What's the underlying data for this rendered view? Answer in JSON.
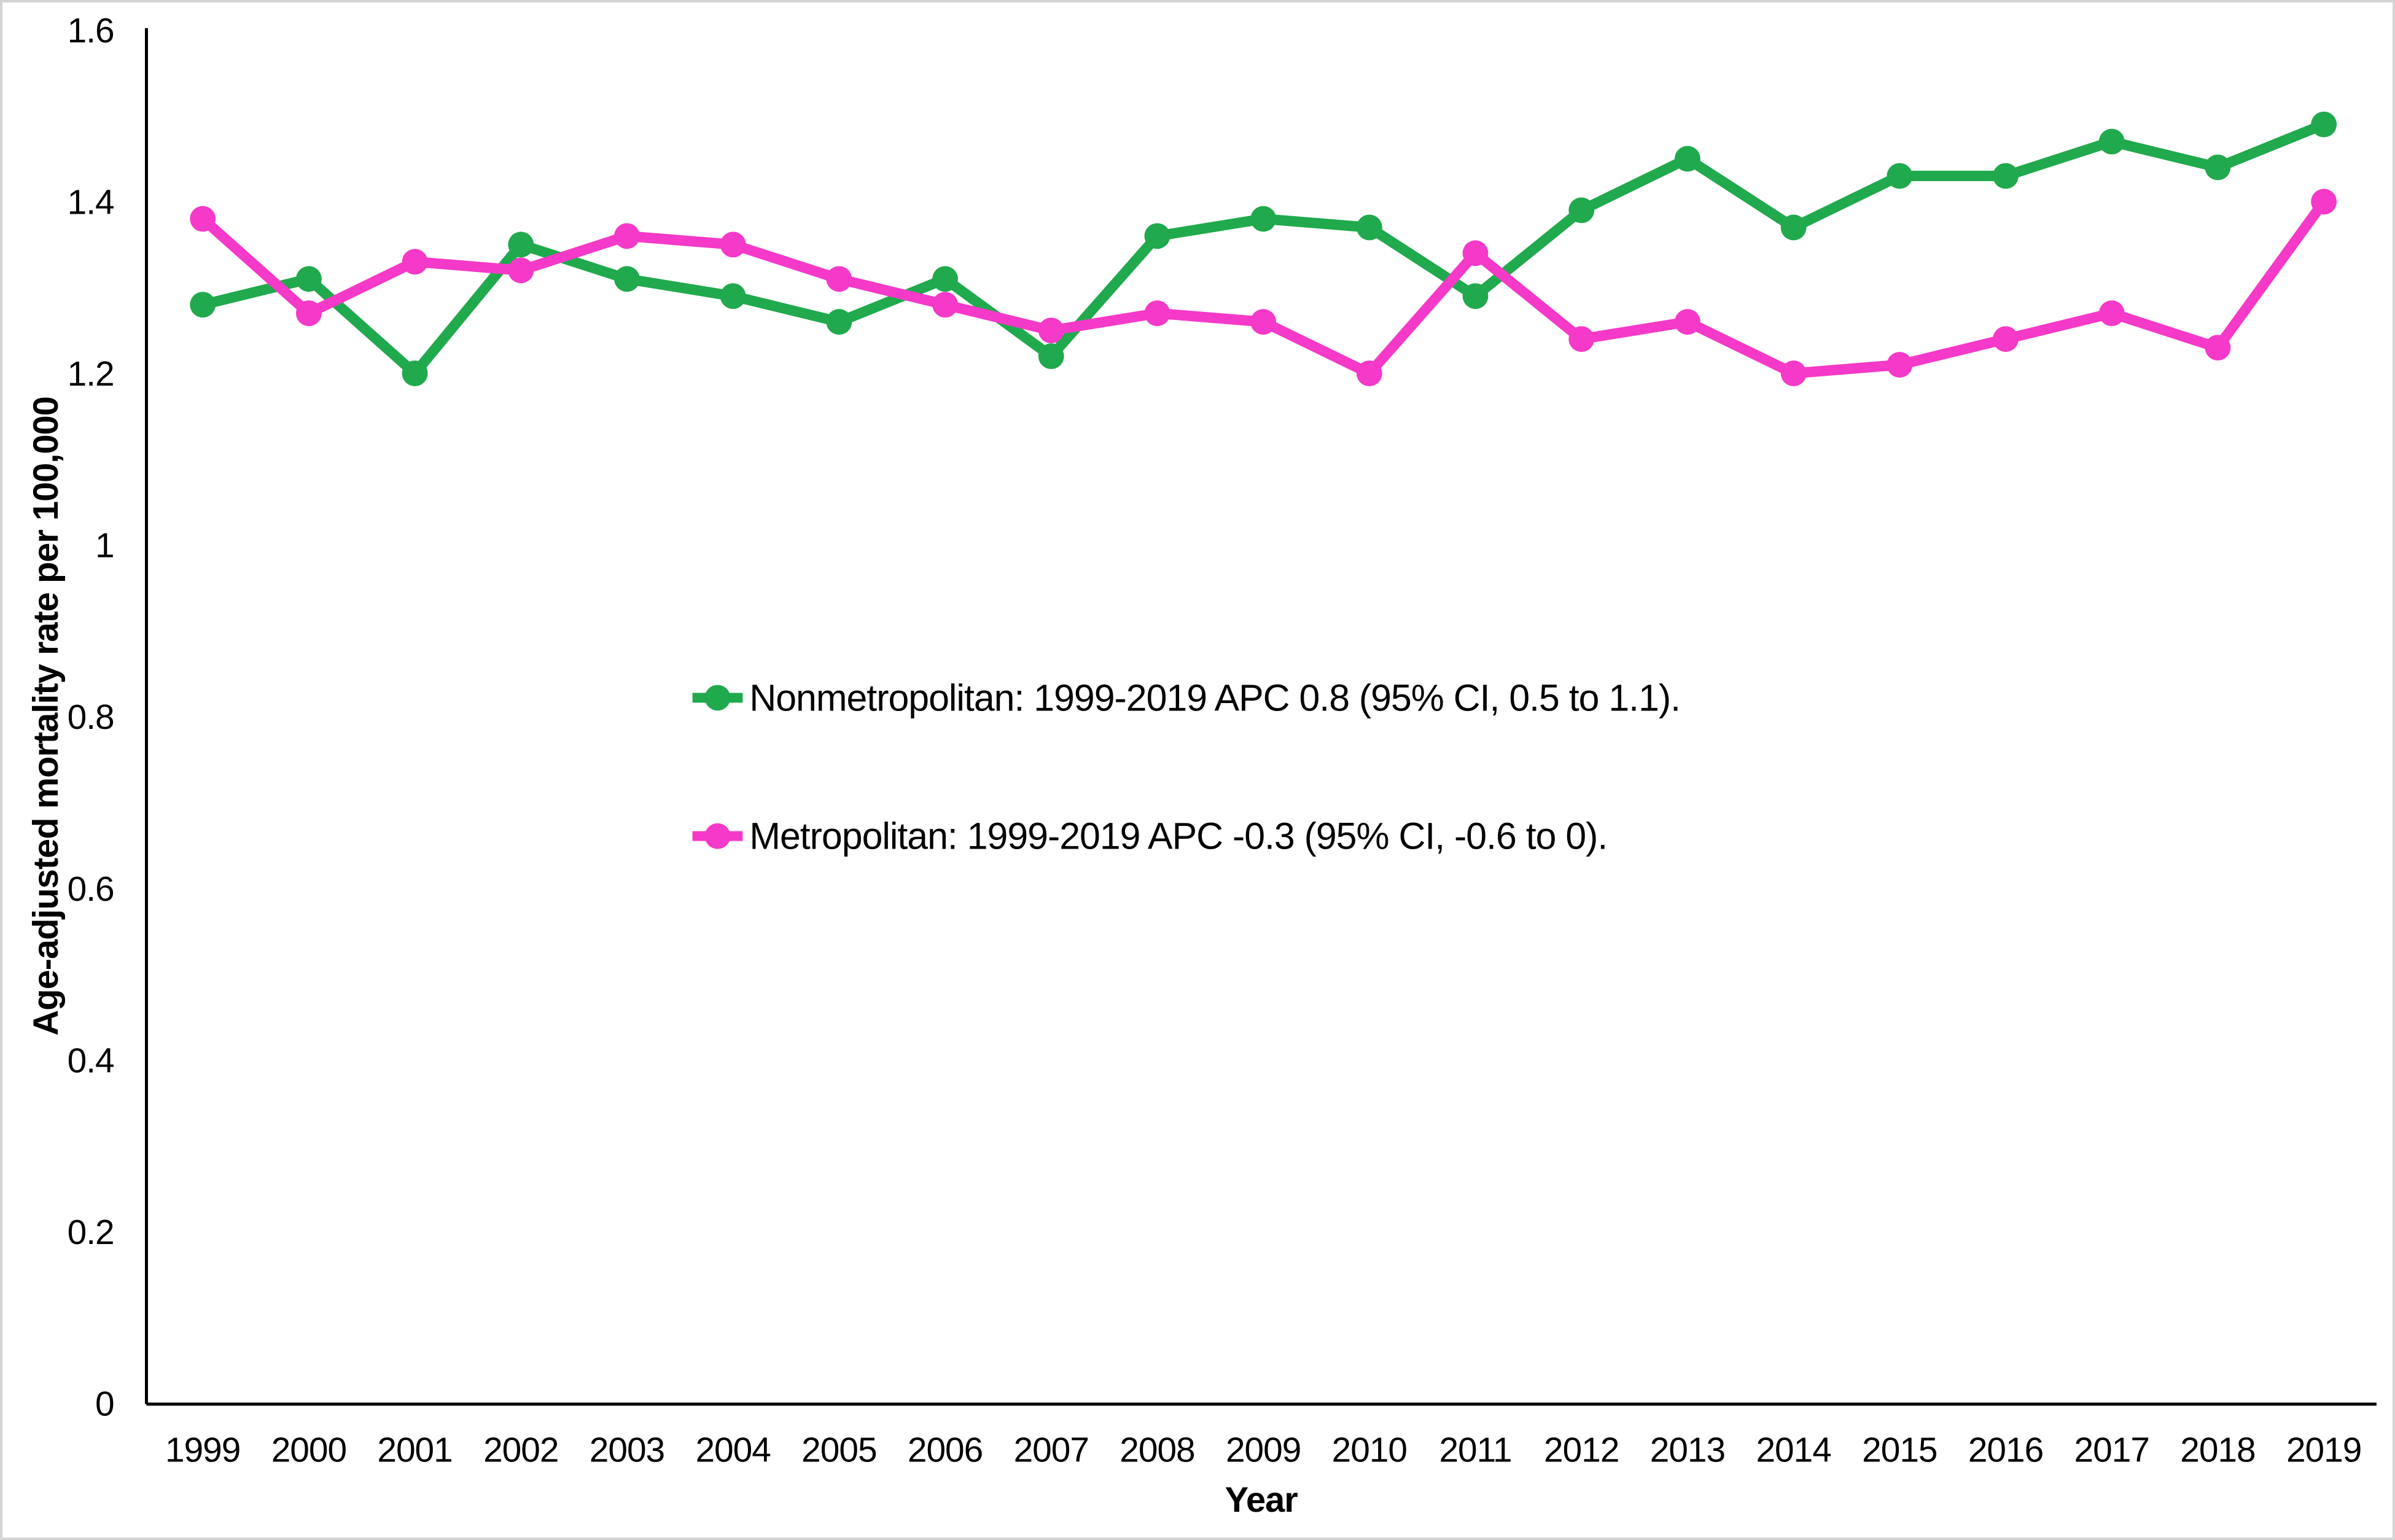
{
  "figure": {
    "background": "#ffffff",
    "border_color": "#d4d4d4",
    "axis_color": "#000000",
    "text_color": "#000000"
  },
  "chart_data": {
    "type": "line",
    "title": "",
    "xlabel": "Year",
    "ylabel": "Age-adjusted mortality rate per 100,000",
    "x": [
      1999,
      2000,
      2001,
      2002,
      2003,
      2004,
      2005,
      2006,
      2007,
      2008,
      2009,
      2010,
      2011,
      2012,
      2013,
      2014,
      2015,
      2016,
      2017,
      2018,
      2019
    ],
    "ylim": [
      0,
      1.6
    ],
    "yticks": [
      0,
      0.2,
      0.4,
      0.6,
      0.8,
      1,
      1.2,
      1.4,
      1.6
    ],
    "ytick_labels": [
      "0",
      "0.2",
      "0.4",
      "0.6",
      "0.8",
      "1",
      "1.2",
      "1.4",
      "1.6"
    ],
    "grid": false,
    "legend_position": "inside-left-middle",
    "marker": "circle",
    "series": [
      {
        "name": "Nonmetropolitan",
        "legend_label": "Nonmetropolitan: 1999-2019 APC 0.8 (95% CI, 0.5 to 1.1).",
        "color": "#21A94D",
        "values": [
          1.28,
          1.31,
          1.2,
          1.35,
          1.31,
          1.29,
          1.26,
          1.31,
          1.22,
          1.36,
          1.38,
          1.37,
          1.29,
          1.39,
          1.45,
          1.37,
          1.43,
          1.43,
          1.47,
          1.44,
          1.49
        ]
      },
      {
        "name": "Metropolitan",
        "legend_label": "Metropolitan: 1999-2019 APC -0.3 (95% CI, -0.6 to 0).",
        "color": "#F539C8",
        "values": [
          1.38,
          1.27,
          1.33,
          1.32,
          1.36,
          1.35,
          1.31,
          1.28,
          1.25,
          1.27,
          1.26,
          1.2,
          1.34,
          1.24,
          1.26,
          1.2,
          1.21,
          1.24,
          1.27,
          1.23,
          1.4
        ]
      }
    ]
  }
}
